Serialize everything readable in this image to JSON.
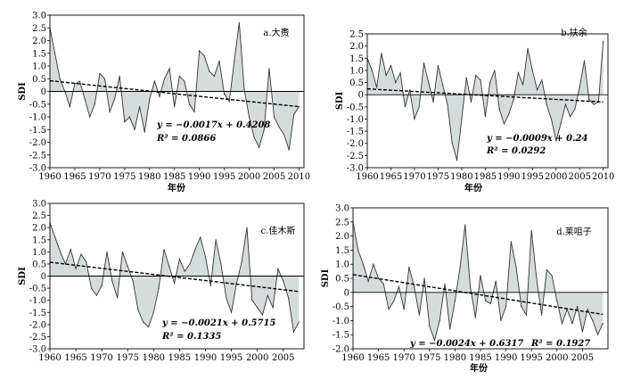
{
  "chart_data": [
    {
      "type": "area",
      "title": "a.大赉",
      "ylabel": "SDI",
      "xlabel": "年份",
      "xlim": [
        1960,
        2011
      ],
      "ylim": [
        -3.0,
        3.0
      ],
      "yticks": [
        "3.0",
        "2.5",
        "2.0",
        "1.5",
        "1.0",
        "0.5",
        "0",
        "-0.5",
        "-1.0",
        "-1.5",
        "-2.0",
        "-2.5",
        "-3.0"
      ],
      "xticks": [
        "1960",
        "1965",
        "1970",
        "1975",
        "1980",
        "1985",
        "1990",
        "1995",
        "2000",
        "2005",
        "2010"
      ],
      "equation": "y = −0.0017x + 0.4208",
      "r2": "R² = 0.0866",
      "trend": {
        "slope": -0.0017,
        "intercept": 0.4208
      },
      "x": [
        1960,
        1961,
        1962,
        1963,
        1964,
        1965,
        1966,
        1967,
        1968,
        1969,
        1970,
        1971,
        1972,
        1973,
        1974,
        1975,
        1976,
        1977,
        1978,
        1979,
        1980,
        1981,
        1982,
        1983,
        1984,
        1985,
        1986,
        1987,
        1988,
        1989,
        1990,
        1991,
        1992,
        1993,
        1994,
        1995,
        1996,
        1997,
        1998,
        1999,
        2000,
        2001,
        2002,
        2003,
        2004,
        2005,
        2006,
        2007,
        2008,
        2009,
        2010
      ],
      "values": [
        2.5,
        1.5,
        0.5,
        0,
        -0.6,
        0.3,
        0.4,
        -0.3,
        -1.0,
        -0.5,
        0.7,
        0.5,
        -0.8,
        -0.3,
        0.6,
        -1.2,
        -1.0,
        -1.5,
        -0.6,
        -1.6,
        -0.3,
        0.4,
        -0.2,
        0.5,
        0.9,
        -0.6,
        0.6,
        0.4,
        -0.5,
        -0.8,
        1.6,
        1.4,
        0.8,
        0.6,
        1.2,
        -0.1,
        -0.4,
        1.2,
        2.7,
        0.1,
        -1.0,
        -1.8,
        -2.2,
        -1.5,
        0.9,
        -1.0,
        -1.4,
        -1.7,
        -2.3,
        -0.9,
        -0.6
      ]
    },
    {
      "type": "area",
      "title": "b.扶余",
      "ylabel": "SDI",
      "xlabel": "年份",
      "xlim": [
        1960,
        2011
      ],
      "ylim": [
        -3.0,
        2.5
      ],
      "yticks": [
        "2.5",
        "2.0",
        "1.5",
        "1.0",
        "0.5",
        "0",
        "-0.5",
        "-1.0",
        "-1.5",
        "-2.0",
        "-2.5",
        "-3.0"
      ],
      "xticks": [
        "1960",
        "1965",
        "1970",
        "1975",
        "1980",
        "1985",
        "1990",
        "1995",
        "2000",
        "2005",
        "2010"
      ],
      "equation": "y = −0.0009x + 0.24",
      "r2": "R² = 0.0292",
      "trend": {
        "slope": -0.0009,
        "intercept": 0.24
      },
      "x": [
        1960,
        1961,
        1962,
        1963,
        1964,
        1965,
        1966,
        1967,
        1968,
        1969,
        1970,
        1971,
        1972,
        1973,
        1974,
        1975,
        1976,
        1977,
        1978,
        1979,
        1980,
        1981,
        1982,
        1983,
        1984,
        1985,
        1986,
        1987,
        1988,
        1989,
        1990,
        1991,
        1992,
        1993,
        1994,
        1995,
        1996,
        1997,
        1998,
        1999,
        2000,
        2001,
        2002,
        2003,
        2004,
        2005,
        2006,
        2007,
        2008,
        2009,
        2010
      ],
      "values": [
        1.5,
        1.0,
        0.3,
        1.7,
        0.8,
        1.2,
        0.5,
        0.9,
        -0.5,
        0.2,
        -1.0,
        -0.5,
        1.3,
        0.5,
        -0.3,
        1.2,
        0.4,
        -0.4,
        -2.0,
        -2.7,
        -1.0,
        0.7,
        -0.3,
        0.8,
        0.6,
        -0.9,
        0.5,
        1.0,
        -0.6,
        -1.2,
        -0.8,
        -0.2,
        0.9,
        0.4,
        1.9,
        1.0,
        0.2,
        0.6,
        -0.4,
        -1.0,
        -1.9,
        -1.2,
        -0.4,
        -0.9,
        -0.6,
        0.3,
        1.4,
        -0.2,
        -0.4,
        -0.3,
        2.2
      ]
    },
    {
      "type": "area",
      "title": "c.佳木斯",
      "ylabel": "SDI",
      "xlabel": "",
      "xlim": [
        1960,
        2009
      ],
      "ylim": [
        -3.0,
        3.0
      ],
      "yticks": [
        "3.0",
        "2.5",
        "2.0",
        "1.5",
        "1.0",
        "0.5",
        "0",
        "-0.5",
        "-1.0",
        "-1.5",
        "-2.0",
        "-2.5",
        "-3.0"
      ],
      "xticks": [
        "1960",
        "1965",
        "1970",
        "1975",
        "1980",
        "1985",
        "1990",
        "1995",
        "2000",
        "2005"
      ],
      "equation": "y = −0.0021x + 0.5715",
      "r2": "R² = 0.1335",
      "trend": {
        "slope": -0.0021,
        "intercept": 0.5715
      },
      "x": [
        1960,
        1961,
        1962,
        1963,
        1964,
        1965,
        1966,
        1967,
        1968,
        1969,
        1970,
        1971,
        1972,
        1973,
        1974,
        1975,
        1976,
        1977,
        1978,
        1979,
        1980,
        1981,
        1982,
        1983,
        1984,
        1985,
        1986,
        1987,
        1988,
        1989,
        1990,
        1991,
        1992,
        1993,
        1994,
        1995,
        1996,
        1997,
        1998,
        1999,
        2000,
        2001,
        2002,
        2003,
        2004,
        2005,
        2006,
        2007,
        2008
      ],
      "values": [
        2.2,
        1.6,
        1.0,
        0.5,
        1.1,
        0.3,
        0.9,
        0.6,
        -0.5,
        -0.8,
        -0.4,
        1.0,
        -0.2,
        -0.9,
        1.0,
        0.4,
        -0.2,
        -1.4,
        -1.9,
        -2.1,
        -1.5,
        -0.5,
        1.1,
        0.4,
        -0.3,
        0.7,
        0.2,
        0.5,
        1.1,
        1.6,
        0.8,
        -0.4,
        1.5,
        0.5,
        -0.9,
        -1.5,
        -0.3,
        0.6,
        2.0,
        -1.0,
        -1.3,
        -1.6,
        -0.8,
        -1.3,
        0.3,
        -0.2,
        -0.9,
        -2.3,
        -1.9
      ]
    },
    {
      "type": "area",
      "title": "d.莱咀子",
      "ylabel": "SDI",
      "xlabel": "年份",
      "xlim": [
        1960,
        2010
      ],
      "ylim": [
        -2.0,
        3.0
      ],
      "yticks": [
        "3.0",
        "2.5",
        "2.0",
        "1.5",
        "1.0",
        "0.5",
        "0",
        "-0.5",
        "-1.0",
        "-1.5",
        "-2.0"
      ],
      "xticks": [
        "1960",
        "1965",
        "1970",
        "1975",
        "1980",
        "1985",
        "1990",
        "1995",
        "2000",
        "2005"
      ],
      "equation": "y = −0.0024x + 0.6317",
      "r2": "R² = 0.1927",
      "trend": {
        "slope": -0.0024,
        "intercept": 0.6317
      },
      "x": [
        1960,
        1961,
        1962,
        1963,
        1964,
        1965,
        1966,
        1967,
        1968,
        1969,
        1970,
        1971,
        1972,
        1973,
        1974,
        1975,
        1976,
        1977,
        1978,
        1979,
        1980,
        1981,
        1982,
        1983,
        1984,
        1985,
        1986,
        1987,
        1988,
        1989,
        1990,
        1991,
        1992,
        1993,
        1994,
        1995,
        1996,
        1997,
        1998,
        1999,
        2000,
        2001,
        2002,
        2003,
        2004,
        2005,
        2006,
        2007,
        2008,
        2009
      ],
      "values": [
        2.5,
        1.5,
        1.0,
        0.4,
        1.0,
        0.5,
        0.3,
        -0.6,
        -0.3,
        0.2,
        -0.6,
        0.9,
        0.2,
        -0.8,
        0.5,
        -1.2,
        -1.7,
        -1.0,
        0.3,
        -1.3,
        -0.3,
        0.9,
        2.4,
        0.2,
        -0.9,
        0.6,
        -0.3,
        -0.4,
        0.4,
        -1.0,
        -0.5,
        1.8,
        0.9,
        -0.5,
        -0.8,
        2.2,
        0.5,
        -0.8,
        0.8,
        0.6,
        -0.3,
        -1.1,
        -0.6,
        -1.1,
        -0.5,
        -1.4,
        -0.6,
        -1.0,
        -1.5,
        -1.1
      ]
    }
  ]
}
